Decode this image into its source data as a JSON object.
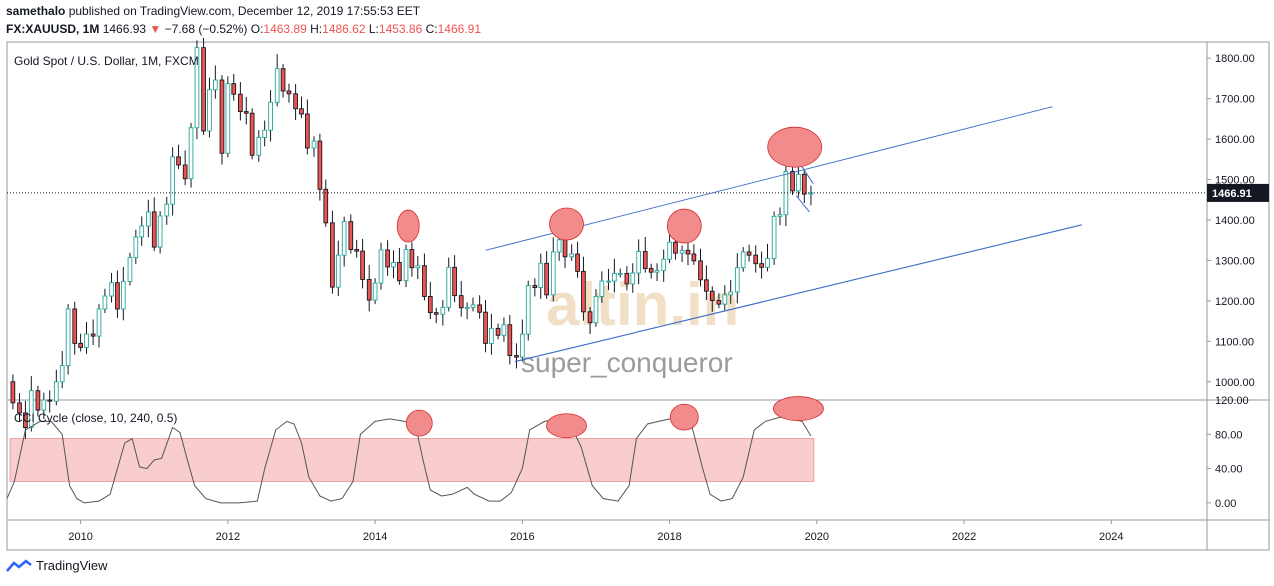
{
  "header": {
    "author": "samethalo",
    "published": "published on TradingView.com, December 12, 2019 17:55:53 EET",
    "symbol": "FX:XAUUSD, 1M",
    "last": "1466.93",
    "change_arrow": "▼",
    "change": "−7.68 (−0.52%)",
    "o_label": "O:",
    "o_value": "1463.89",
    "h_label": "H:",
    "h_value": "1486.62",
    "l_label": "L:",
    "l_value": "1453.86",
    "c_label": "C:",
    "c_value": "1466.91"
  },
  "footer": {
    "brand": "TradingView",
    "logo_icon": "tradingview-logo-icon"
  },
  "colors": {
    "up": "#26a69a",
    "down": "#ef5350",
    "upBody": "#ffffff",
    "wick": "#131722",
    "channel": "#3a6bc8",
    "circle": "#f28b8b",
    "zone": "#f8c8c8",
    "accent": "#ef5350",
    "watermark_logo": "#e8c9a0",
    "watermark_text": "#8a8a8a"
  },
  "chart_data": [
    {
      "type": "candlestick",
      "title": "Gold Spot / U.S. Dollar, 1M, FXCM",
      "x_ticks": [
        "2010",
        "2012",
        "2014",
        "2016",
        "2018",
        "2020",
        "2022",
        "2024"
      ],
      "y_ticks": [
        "1000.00",
        "1100.00",
        "1200.00",
        "1300.00",
        "1400.00",
        "1500.00",
        "1600.00",
        "1700.00",
        "1800.00"
      ],
      "xlim": [
        2009.0,
        2025.3
      ],
      "ylim": [
        955,
        1840
      ],
      "last_price_label": "1466.91",
      "last_price": 1466.91,
      "watermark_logo": "altin.in",
      "watermark_user": "super_conqueror",
      "closes": [
        [
          2009.0,
          1000
        ],
        [
          2009.08,
          948
        ],
        [
          2009.17,
          923
        ],
        [
          2009.25,
          887
        ],
        [
          2009.33,
          978
        ],
        [
          2009.42,
          930
        ],
        [
          2009.5,
          955
        ],
        [
          2009.58,
          952
        ],
        [
          2009.67,
          1000
        ],
        [
          2009.75,
          1040
        ],
        [
          2009.83,
          1180
        ],
        [
          2009.92,
          1095
        ],
        [
          2010.0,
          1085
        ],
        [
          2010.08,
          1118
        ],
        [
          2010.17,
          1113
        ],
        [
          2010.25,
          1180
        ],
        [
          2010.33,
          1212
        ],
        [
          2010.42,
          1245
        ],
        [
          2010.5,
          1180
        ],
        [
          2010.58,
          1248
        ],
        [
          2010.67,
          1307
        ],
        [
          2010.75,
          1358
        ],
        [
          2010.83,
          1385
        ],
        [
          2010.92,
          1420
        ],
        [
          2011.0,
          1333
        ],
        [
          2011.08,
          1410
        ],
        [
          2011.17,
          1439
        ],
        [
          2011.25,
          1556
        ],
        [
          2011.33,
          1536
        ],
        [
          2011.42,
          1502
        ],
        [
          2011.5,
          1628
        ],
        [
          2011.58,
          1826
        ],
        [
          2011.67,
          1620
        ],
        [
          2011.75,
          1722
        ],
        [
          2011.83,
          1746
        ],
        [
          2011.92,
          1565
        ],
        [
          2012.0,
          1737
        ],
        [
          2012.08,
          1711
        ],
        [
          2012.17,
          1668
        ],
        [
          2012.25,
          1664
        ],
        [
          2012.33,
          1560
        ],
        [
          2012.42,
          1604
        ],
        [
          2012.5,
          1622
        ],
        [
          2012.58,
          1691
        ],
        [
          2012.67,
          1774
        ],
        [
          2012.75,
          1719
        ],
        [
          2012.83,
          1712
        ],
        [
          2012.92,
          1675
        ],
        [
          2013.0,
          1662
        ],
        [
          2013.08,
          1578
        ],
        [
          2013.17,
          1595
        ],
        [
          2013.25,
          1476
        ],
        [
          2013.33,
          1393
        ],
        [
          2013.42,
          1234
        ],
        [
          2013.5,
          1313
        ],
        [
          2013.58,
          1396
        ],
        [
          2013.67,
          1327
        ],
        [
          2013.75,
          1323
        ],
        [
          2013.83,
          1253
        ],
        [
          2013.92,
          1202
        ],
        [
          2014.0,
          1244
        ],
        [
          2014.08,
          1326
        ],
        [
          2014.17,
          1284
        ],
        [
          2014.25,
          1295
        ],
        [
          2014.33,
          1250
        ],
        [
          2014.42,
          1327
        ],
        [
          2014.5,
          1282
        ],
        [
          2014.58,
          1287
        ],
        [
          2014.67,
          1211
        ],
        [
          2014.75,
          1171
        ],
        [
          2014.83,
          1167
        ],
        [
          2014.92,
          1184
        ],
        [
          2015.0,
          1283
        ],
        [
          2015.08,
          1213
        ],
        [
          2015.17,
          1183
        ],
        [
          2015.25,
          1184
        ],
        [
          2015.33,
          1190
        ],
        [
          2015.42,
          1172
        ],
        [
          2015.5,
          1095
        ],
        [
          2015.58,
          1132
        ],
        [
          2015.67,
          1115
        ],
        [
          2015.75,
          1141
        ],
        [
          2015.83,
          1065
        ],
        [
          2015.92,
          1061
        ],
        [
          2016.0,
          1118
        ],
        [
          2016.08,
          1238
        ],
        [
          2016.17,
          1233
        ],
        [
          2016.25,
          1293
        ],
        [
          2016.33,
          1215
        ],
        [
          2016.42,
          1321
        ],
        [
          2016.5,
          1351
        ],
        [
          2016.58,
          1309
        ],
        [
          2016.67,
          1316
        ],
        [
          2016.75,
          1273
        ],
        [
          2016.83,
          1173
        ],
        [
          2016.92,
          1146
        ],
        [
          2017.0,
          1211
        ],
        [
          2017.08,
          1249
        ],
        [
          2017.17,
          1249
        ],
        [
          2017.25,
          1268
        ],
        [
          2017.33,
          1268
        ],
        [
          2017.42,
          1242
        ],
        [
          2017.5,
          1269
        ],
        [
          2017.58,
          1322
        ],
        [
          2017.67,
          1280
        ],
        [
          2017.75,
          1271
        ],
        [
          2017.83,
          1275
        ],
        [
          2017.92,
          1303
        ],
        [
          2018.0,
          1345
        ],
        [
          2018.08,
          1318
        ],
        [
          2018.17,
          1325
        ],
        [
          2018.25,
          1316
        ],
        [
          2018.33,
          1299
        ],
        [
          2018.42,
          1252
        ],
        [
          2018.5,
          1224
        ],
        [
          2018.58,
          1201
        ],
        [
          2018.67,
          1192
        ],
        [
          2018.75,
          1215
        ],
        [
          2018.83,
          1222
        ],
        [
          2018.92,
          1282
        ],
        [
          2019.0,
          1321
        ],
        [
          2019.08,
          1313
        ],
        [
          2019.17,
          1292
        ],
        [
          2019.25,
          1283
        ],
        [
          2019.33,
          1305
        ],
        [
          2019.42,
          1409
        ],
        [
          2019.5,
          1413
        ],
        [
          2019.58,
          1520
        ],
        [
          2019.67,
          1472
        ],
        [
          2019.75,
          1513
        ],
        [
          2019.83,
          1464
        ],
        [
          2019.92,
          1466.91
        ]
      ],
      "channel_upper": [
        [
          2015.5,
          1325
        ],
        [
          2023.2,
          1680
        ]
      ],
      "channel_lower": [
        [
          2015.9,
          1050
        ],
        [
          2023.6,
          1388
        ]
      ],
      "short_channel": [
        [
          2019.75,
          1545
        ],
        [
          2019.95,
          1490
        ],
        [
          2019.72,
          1460
        ],
        [
          2019.9,
          1420
        ]
      ],
      "highlight_circles_price": [
        [
          2014.45,
          1385
        ],
        [
          2016.6,
          1390
        ],
        [
          2018.2,
          1385
        ],
        [
          2019.7,
          1580
        ]
      ]
    },
    {
      "type": "line",
      "title": "CCI Cycle (close, 10, 240, 0.5)",
      "y_ticks": [
        "0.00",
        "40.00",
        "80.00",
        "120.00"
      ],
      "ylim": [
        -20,
        120
      ],
      "zone": [
        25,
        75
      ],
      "values": [
        [
          2009.0,
          5
        ],
        [
          2009.1,
          25
        ],
        [
          2009.25,
          85
        ],
        [
          2009.45,
          95
        ],
        [
          2009.6,
          95
        ],
        [
          2009.75,
          80
        ],
        [
          2009.85,
          20
        ],
        [
          2009.95,
          5
        ],
        [
          2010.05,
          0
        ],
        [
          2010.25,
          2
        ],
        [
          2010.4,
          10
        ],
        [
          2010.5,
          40
        ],
        [
          2010.6,
          70
        ],
        [
          2010.7,
          75
        ],
        [
          2010.8,
          42
        ],
        [
          2010.9,
          40
        ],
        [
          2011.0,
          50
        ],
        [
          2011.1,
          52
        ],
        [
          2011.25,
          88
        ],
        [
          2011.35,
          82
        ],
        [
          2011.45,
          50
        ],
        [
          2011.55,
          20
        ],
        [
          2011.7,
          5
        ],
        [
          2011.9,
          0
        ],
        [
          2012.15,
          0
        ],
        [
          2012.4,
          2
        ],
        [
          2012.5,
          40
        ],
        [
          2012.65,
          85
        ],
        [
          2012.8,
          95
        ],
        [
          2012.9,
          92
        ],
        [
          2013.0,
          70
        ],
        [
          2013.1,
          30
        ],
        [
          2013.25,
          8
        ],
        [
          2013.4,
          2
        ],
        [
          2013.55,
          5
        ],
        [
          2013.7,
          25
        ],
        [
          2013.8,
          80
        ],
        [
          2014.0,
          95
        ],
        [
          2014.2,
          98
        ],
        [
          2014.4,
          95
        ],
        [
          2014.55,
          90
        ],
        [
          2014.65,
          50
        ],
        [
          2014.75,
          15
        ],
        [
          2014.9,
          8
        ],
        [
          2015.05,
          10
        ],
        [
          2015.25,
          18
        ],
        [
          2015.35,
          10
        ],
        [
          2015.55,
          2
        ],
        [
          2015.7,
          2
        ],
        [
          2015.85,
          12
        ],
        [
          2016.0,
          40
        ],
        [
          2016.1,
          85
        ],
        [
          2016.3,
          95
        ],
        [
          2016.5,
          98
        ],
        [
          2016.65,
          92
        ],
        [
          2016.8,
          65
        ],
        [
          2016.95,
          20
        ],
        [
          2017.1,
          5
        ],
        [
          2017.3,
          2
        ],
        [
          2017.45,
          20
        ],
        [
          2017.55,
          75
        ],
        [
          2017.7,
          92
        ],
        [
          2017.85,
          95
        ],
        [
          2018.0,
          98
        ],
        [
          2018.15,
          100
        ],
        [
          2018.3,
          90
        ],
        [
          2018.45,
          40
        ],
        [
          2018.55,
          10
        ],
        [
          2018.7,
          2
        ],
        [
          2018.85,
          5
        ],
        [
          2019.0,
          30
        ],
        [
          2019.15,
          85
        ],
        [
          2019.3,
          95
        ],
        [
          2019.5,
          100
        ],
        [
          2019.65,
          98
        ],
        [
          2019.8,
          95
        ],
        [
          2019.92,
          78
        ]
      ],
      "highlight_circles": [
        [
          2014.6,
          93
        ],
        [
          2016.6,
          90
        ],
        [
          2018.2,
          100
        ],
        [
          2019.75,
          110
        ]
      ]
    }
  ]
}
